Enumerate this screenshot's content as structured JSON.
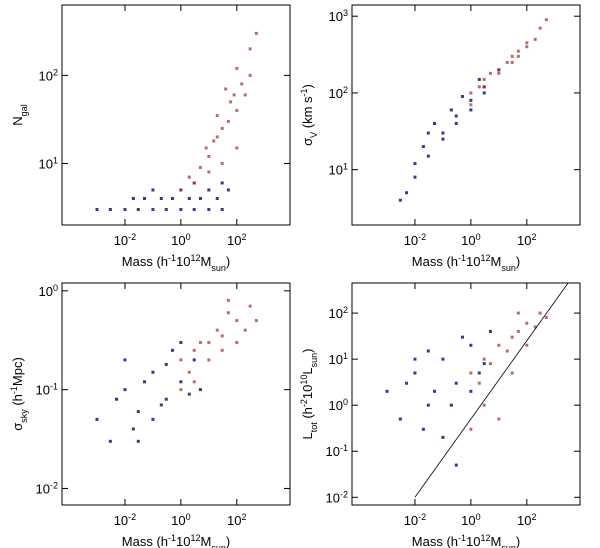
{
  "chart_data": [
    {
      "type": "scatter",
      "xscale": "log",
      "yscale": "log",
      "xlim": [
        5.6e-05,
        8000
      ],
      "ylim": [
        2,
        630
      ],
      "xticks": [
        {
          "value": 0.01,
          "label": {
            "base": "10",
            "exp": "-2"
          }
        },
        {
          "value": 1,
          "label": {
            "base": "10",
            "exp": "0"
          }
        },
        {
          "value": 100,
          "label": {
            "base": "10",
            "exp": "2"
          }
        }
      ],
      "yticks": [
        {
          "value": 10,
          "label": {
            "base": "10",
            "exp": "1"
          }
        },
        {
          "value": 100,
          "label": {
            "base": "10",
            "exp": "2"
          }
        }
      ],
      "xlabel": [
        {
          "text": "Mass  (h"
        },
        {
          "text": "-1",
          "shift": "super"
        },
        {
          "text": "10"
        },
        {
          "text": "12",
          "shift": "super"
        },
        {
          "text": "M"
        },
        {
          "text": "sun",
          "shift": "sub"
        },
        {
          "text": ")"
        }
      ],
      "ylabel": [
        {
          "text": "N"
        },
        {
          "text": "gal",
          "shift": "sub"
        }
      ],
      "series": [
        {
          "color": "#23237a",
          "x": [
            0.001,
            0.003,
            0.01,
            0.03,
            0.1,
            0.3,
            1,
            3,
            10,
            30,
            0.02,
            0.2,
            2,
            20,
            0.05,
            0.5,
            5,
            50,
            0.1,
            1,
            10,
            3,
            30
          ],
          "y": [
            3,
            3,
            3,
            3,
            3,
            3,
            3,
            3,
            3,
            3,
            4,
            4,
            4,
            4,
            4,
            4,
            4,
            5,
            5,
            5,
            5,
            6,
            6
          ]
        },
        {
          "color": "#a83a3a",
          "x": [
            1,
            3,
            10,
            30,
            100,
            2,
            5,
            20,
            50,
            200,
            10,
            30,
            100,
            300,
            20,
            60,
            150,
            500,
            40,
            100,
            300,
            8,
            15,
            80
          ],
          "y": [
            5,
            6,
            8,
            10,
            15,
            7,
            9,
            20,
            30,
            60,
            12,
            25,
            40,
            100,
            35,
            50,
            80,
            300,
            70,
            120,
            200,
            15,
            18,
            60
          ]
        }
      ]
    },
    {
      "type": "scatter",
      "xscale": "log",
      "yscale": "log",
      "xlim": [
        5.6e-05,
        8000
      ],
      "ylim": [
        1.9,
        1400
      ],
      "xticks": [
        {
          "value": 0.01,
          "label": {
            "base": "10",
            "exp": "-2"
          }
        },
        {
          "value": 1,
          "label": {
            "base": "10",
            "exp": "0"
          }
        },
        {
          "value": 100,
          "label": {
            "base": "10",
            "exp": "2"
          }
        }
      ],
      "yticks": [
        {
          "value": 10,
          "label": {
            "base": "10",
            "exp": "1"
          }
        },
        {
          "value": 100,
          "label": {
            "base": "10",
            "exp": "2"
          }
        },
        {
          "value": 1000,
          "label": {
            "base": "10",
            "exp": "3"
          }
        }
      ],
      "xlabel": [
        {
          "text": "Mass  (h"
        },
        {
          "text": "-1",
          "shift": "super"
        },
        {
          "text": "10"
        },
        {
          "text": "12",
          "shift": "super"
        },
        {
          "text": "M"
        },
        {
          "text": "sun",
          "shift": "sub"
        },
        {
          "text": ")"
        }
      ],
      "ylabel": [
        {
          "text": "σ"
        },
        {
          "text": "V",
          "shift": "sub"
        },
        {
          "text": "  (km s"
        },
        {
          "text": "-1",
          "shift": "super"
        },
        {
          "text": ")"
        }
      ],
      "series": [
        {
          "color": "#23237a",
          "x": [
            0.003,
            0.01,
            0.03,
            0.1,
            0.3,
            1,
            3,
            10,
            0.02,
            0.05,
            0.2,
            0.5,
            2,
            0.01,
            0.1,
            1,
            0.005,
            0.3,
            3,
            0.03
          ],
          "y": [
            4,
            8,
            15,
            30,
            50,
            80,
            120,
            200,
            20,
            40,
            60,
            90,
            150,
            12,
            25,
            60,
            5,
            40,
            100,
            30
          ]
        },
        {
          "color": "#a83a3a",
          "x": [
            1,
            3,
            10,
            30,
            100,
            300,
            2,
            5,
            20,
            50,
            200,
            500,
            10,
            30,
            100,
            1,
            3,
            50
          ],
          "y": [
            100,
            150,
            200,
            300,
            400,
            700,
            120,
            180,
            250,
            350,
            500,
            900,
            180,
            250,
            450,
            70,
            120,
            300
          ]
        }
      ]
    },
    {
      "type": "scatter",
      "xscale": "log",
      "yscale": "log",
      "xlim": [
        5.6e-05,
        8000
      ],
      "ylim": [
        0.0068,
        1.2
      ],
      "xticks": [
        {
          "value": 0.01,
          "label": {
            "base": "10",
            "exp": "-2"
          }
        },
        {
          "value": 1,
          "label": {
            "base": "10",
            "exp": "0"
          }
        },
        {
          "value": 100,
          "label": {
            "base": "10",
            "exp": "2"
          }
        }
      ],
      "yticks": [
        {
          "value": 0.01,
          "label": {
            "base": "10",
            "exp": "-2"
          }
        },
        {
          "value": 0.1,
          "label": {
            "base": "10",
            "exp": "-1"
          }
        },
        {
          "value": 1,
          "label": {
            "base": "10",
            "exp": "0"
          }
        }
      ],
      "xlabel": [
        {
          "text": "Mass  (h"
        },
        {
          "text": "-1",
          "shift": "super"
        },
        {
          "text": "10"
        },
        {
          "text": "12",
          "shift": "super"
        },
        {
          "text": "M"
        },
        {
          "text": "sun",
          "shift": "sub"
        },
        {
          "text": ")"
        }
      ],
      "ylabel": [
        {
          "text": "σ"
        },
        {
          "text": "sky",
          "shift": "sub"
        },
        {
          "text": "  (h"
        },
        {
          "text": "-1",
          "shift": "super"
        },
        {
          "text": "Mpc)"
        }
      ],
      "series": [
        {
          "color": "#23237a",
          "x": [
            0.001,
            0.003,
            0.01,
            0.03,
            0.1,
            0.3,
            1,
            3,
            0.02,
            0.05,
            0.2,
            0.5,
            2,
            0.01,
            0.1,
            1,
            0.005,
            0.3,
            0.03,
            5
          ],
          "y": [
            0.05,
            0.03,
            0.1,
            0.06,
            0.15,
            0.08,
            0.12,
            0.2,
            0.04,
            0.12,
            0.07,
            0.25,
            0.09,
            0.2,
            0.05,
            0.3,
            0.08,
            0.18,
            0.03,
            0.1
          ]
        },
        {
          "color": "#a83a3a",
          "x": [
            1,
            3,
            10,
            30,
            100,
            300,
            2,
            5,
            20,
            50,
            200,
            10,
            30,
            3,
            100,
            1,
            50,
            500
          ],
          "y": [
            0.2,
            0.25,
            0.3,
            0.35,
            0.5,
            0.7,
            0.15,
            0.3,
            0.4,
            0.6,
            0.4,
            0.2,
            0.25,
            0.12,
            0.3,
            0.1,
            0.8,
            0.5
          ]
        }
      ]
    },
    {
      "type": "scatter",
      "xscale": "log",
      "yscale": "log",
      "xlim": [
        5.6e-05,
        8000
      ],
      "ylim": [
        0.0068,
        450
      ],
      "xticks": [
        {
          "value": 0.01,
          "label": {
            "base": "10",
            "exp": "-2"
          }
        },
        {
          "value": 1,
          "label": {
            "base": "10",
            "exp": "0"
          }
        },
        {
          "value": 100,
          "label": {
            "base": "10",
            "exp": "2"
          }
        }
      ],
      "yticks": [
        {
          "value": 0.01,
          "label": {
            "base": "10",
            "exp": "-2"
          }
        },
        {
          "value": 0.1,
          "label": {
            "base": "10",
            "exp": "-1"
          }
        },
        {
          "value": 1,
          "label": {
            "base": "10",
            "exp": "0"
          }
        },
        {
          "value": 10,
          "label": {
            "base": "10",
            "exp": "1"
          }
        },
        {
          "value": 100,
          "label": {
            "base": "10",
            "exp": "2"
          }
        }
      ],
      "xlabel": [
        {
          "text": "Mass  (h"
        },
        {
          "text": "-1",
          "shift": "super"
        },
        {
          "text": "10"
        },
        {
          "text": "12",
          "shift": "super"
        },
        {
          "text": "M"
        },
        {
          "text": "sun",
          "shift": "sub"
        },
        {
          "text": ")"
        }
      ],
      "ylabel": [
        {
          "text": "L"
        },
        {
          "text": "tot",
          "shift": "sub"
        },
        {
          "text": "  (h"
        },
        {
          "text": "-2",
          "shift": "super"
        },
        {
          "text": "10"
        },
        {
          "text": "10",
          "shift": "super"
        },
        {
          "text": "L"
        },
        {
          "text": "sun",
          "shift": "sub"
        },
        {
          "text": ")"
        }
      ],
      "series": [
        {
          "color": "#23237a",
          "x": [
            0.001,
            0.003,
            0.01,
            0.03,
            0.1,
            0.3,
            1,
            3,
            0.02,
            0.05,
            0.2,
            0.5,
            2,
            0.01,
            0.1,
            1,
            0.005,
            0.3,
            0.03,
            5
          ],
          "y": [
            2,
            0.5,
            5,
            1,
            10,
            3,
            20,
            8,
            0.3,
            2,
            1,
            30,
            5,
            10,
            0.2,
            2,
            3,
            0.05,
            15,
            40
          ]
        },
        {
          "color": "#a83a3a",
          "x": [
            1,
            3,
            10,
            30,
            100,
            300,
            2,
            5,
            20,
            50,
            200,
            10,
            30,
            3,
            100,
            1,
            50,
            500
          ],
          "y": [
            5,
            10,
            20,
            30,
            60,
            100,
            3,
            8,
            15,
            40,
            50,
            0.5,
            5,
            1,
            20,
            0.3,
            100,
            80
          ]
        }
      ],
      "line": {
        "color": "#000000",
        "x": [
          0.01,
          3000
        ],
        "y": [
          0.01,
          450
        ]
      }
    }
  ]
}
